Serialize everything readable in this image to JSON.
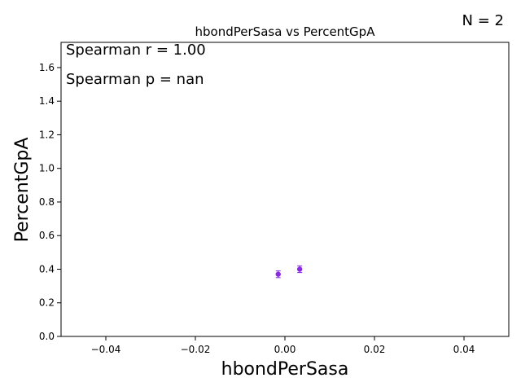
{
  "chart_data": {
    "type": "scatter",
    "title": "hbondPerSasa vs PercentGpA",
    "xlabel": "hbondPerSasa",
    "ylabel": "PercentGpA",
    "xlim": [
      -0.05,
      0.05
    ],
    "ylim": [
      0.0,
      1.75
    ],
    "xticks": [
      -0.04,
      -0.02,
      0.0,
      0.02,
      0.04
    ],
    "xtick_labels": [
      "−0.04",
      "−0.02",
      "0.00",
      "0.02",
      "0.04"
    ],
    "yticks": [
      0.0,
      0.2,
      0.4,
      0.6,
      0.8,
      1.0,
      1.2,
      1.4,
      1.6
    ],
    "ytick_labels": [
      "0.0",
      "0.2",
      "0.4",
      "0.6",
      "0.8",
      "1.0",
      "1.2",
      "1.4",
      "1.6"
    ],
    "grid": false,
    "series": [
      {
        "color": "#8a2be2",
        "points": [
          {
            "x": -0.0015,
            "y": 0.37,
            "yerr": 0.02
          },
          {
            "x": 0.0033,
            "y": 0.4,
            "yerr": 0.02
          }
        ]
      }
    ],
    "annotations": {
      "n_label": "N = 2",
      "spearman_r": "Spearman r = 1.00",
      "spearman_p": "Spearman p = nan"
    }
  }
}
